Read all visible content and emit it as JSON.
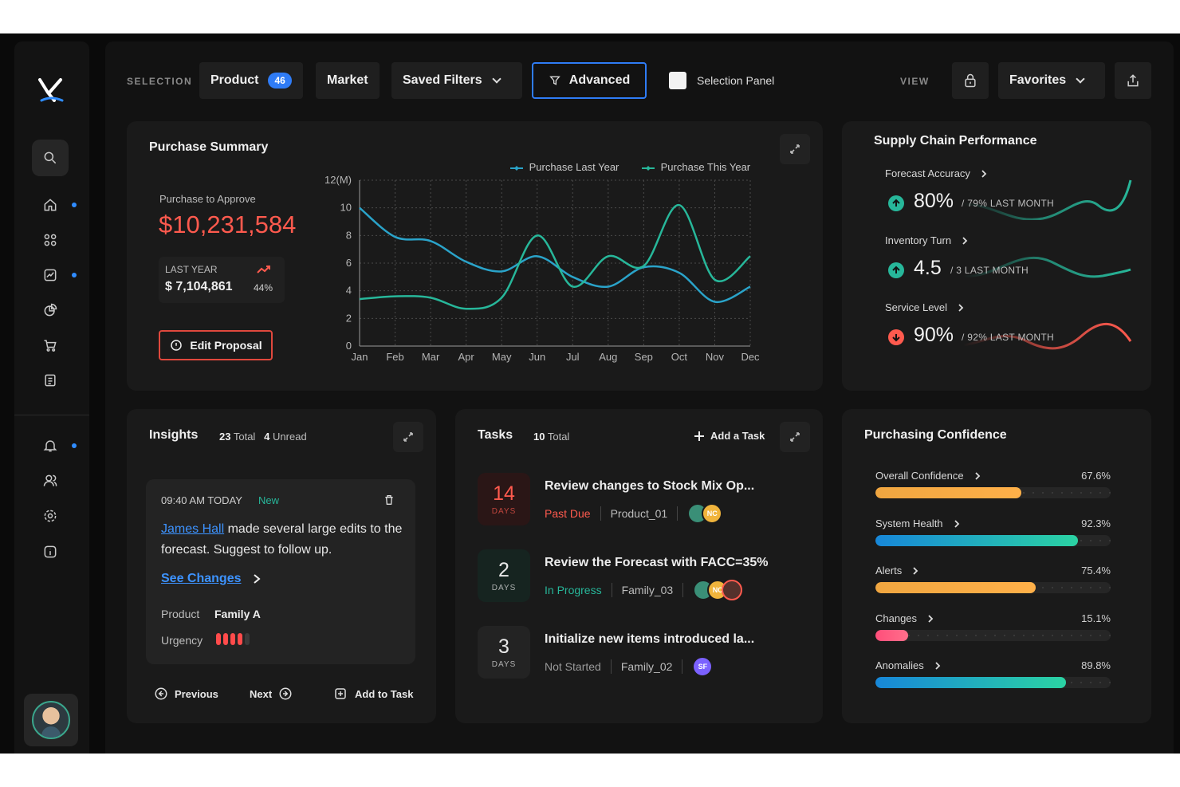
{
  "topbar": {
    "selection_label": "SELECTION",
    "product_label": "Product",
    "product_count": "46",
    "market_label": "Market",
    "saved_filters_label": "Saved Filters",
    "advanced_label": "Advanced",
    "selection_panel_label": "Selection Panel",
    "view_label": "VIEW",
    "favorites_label": "Favorites"
  },
  "purchase_summary": {
    "title": "Purchase Summary",
    "to_approve_label": "Purchase to Approve",
    "to_approve_value": "$10,231,584",
    "last_year_label": "LAST YEAR",
    "last_year_value": "$ 7,104,861",
    "change_pct": "44%",
    "edit_button": "Edit Proposal"
  },
  "chart_data": {
    "type": "line",
    "x": [
      "Jan",
      "Feb",
      "Mar",
      "Apr",
      "May",
      "Jun",
      "Jul",
      "Aug",
      "Sep",
      "Oct",
      "Nov",
      "Dec"
    ],
    "y_ticks": [
      "0",
      "2",
      "4",
      "6",
      "8",
      "10",
      "12(M)"
    ],
    "ylim": [
      0,
      12
    ],
    "series": [
      {
        "name": "Purchase Last Year",
        "color": "#2aa3c9",
        "values": [
          10,
          7.9,
          7.6,
          6.1,
          5.4,
          6.5,
          5.0,
          4.3,
          5.7,
          5.3,
          3.2,
          4.3
        ]
      },
      {
        "name": "Purchase This Year",
        "color": "#27b79a",
        "values": [
          3.4,
          3.6,
          3.5,
          2.7,
          3.5,
          8.0,
          4.3,
          6.5,
          5.8,
          10.2,
          4.8,
          6.5
        ]
      }
    ],
    "legend": "top-right",
    "grid": true
  },
  "supply_chain": {
    "title": "Supply Chain Performance",
    "metrics": [
      {
        "label": "Forecast Accuracy",
        "value": "80%",
        "sub": "/ 79% LAST MONTH",
        "direction": "up",
        "color": "#27b79a"
      },
      {
        "label": "Inventory Turn",
        "value": "4.5",
        "sub": "/ 3 LAST MONTH",
        "direction": "up",
        "color": "#27b79a"
      },
      {
        "label": "Service Level",
        "value": "90%",
        "sub": "/ 92% LAST MONTH",
        "direction": "down",
        "color": "#ff5a4e"
      }
    ]
  },
  "insights": {
    "title": "Insights",
    "total": "23",
    "total_label": "Total",
    "unread": "4",
    "unread_label": "Unread",
    "time": "09:40 AM TODAY",
    "new_label": "New",
    "author": "James Hall",
    "message_rest": " made several large edits to the forecast. Suggest to follow up.",
    "see_changes": "See Changes",
    "product_label": "Product",
    "product_value": "Family A",
    "urgency_label": "Urgency",
    "urgency_level": 4,
    "urgency_max": 5,
    "previous": "Previous",
    "next": "Next",
    "add_to_task": "Add to Task"
  },
  "tasks": {
    "title": "Tasks",
    "total": "10",
    "total_label": "Total",
    "add_label": "Add a Task",
    "days_label": "DAYS",
    "items": [
      {
        "days": "14",
        "title": "Review changes to Stock Mix Op...",
        "status": "Past Due",
        "status_color": "#ff5a4e",
        "scope": "Product_01"
      },
      {
        "days": "2",
        "title": "Review the Forecast with FACC=35%",
        "status": "In Progress",
        "status_color": "#27b79a",
        "scope": "Family_03"
      },
      {
        "days": "3",
        "title": "Initialize new items introduced la...",
        "status": "Not Started",
        "status_color": "#9a9a9a",
        "scope": "Family_02"
      }
    ],
    "initials": [
      "NC",
      "NC",
      "SF"
    ]
  },
  "confidence": {
    "title": "Purchasing Confidence",
    "items": [
      {
        "label": "Overall Confidence",
        "value": "67.6%",
        "pct": 0.62,
        "gradient": [
          "#f0a640",
          "#ffb049"
        ]
      },
      {
        "label": "System Health",
        "value": "92.3%",
        "pct": 0.86,
        "gradient": [
          "#1787d9",
          "#2bd3a3"
        ]
      },
      {
        "label": "Alerts",
        "value": "75.4%",
        "pct": 0.68,
        "gradient": [
          "#f0a640",
          "#ffb049"
        ]
      },
      {
        "label": "Changes",
        "value": "15.1%",
        "pct": 0.14,
        "gradient": [
          "#ff4e7a",
          "#ff6f8b"
        ]
      },
      {
        "label": "Anomalies",
        "value": "89.8%",
        "pct": 0.81,
        "gradient": [
          "#1787d9",
          "#2bd3a3"
        ]
      }
    ]
  }
}
